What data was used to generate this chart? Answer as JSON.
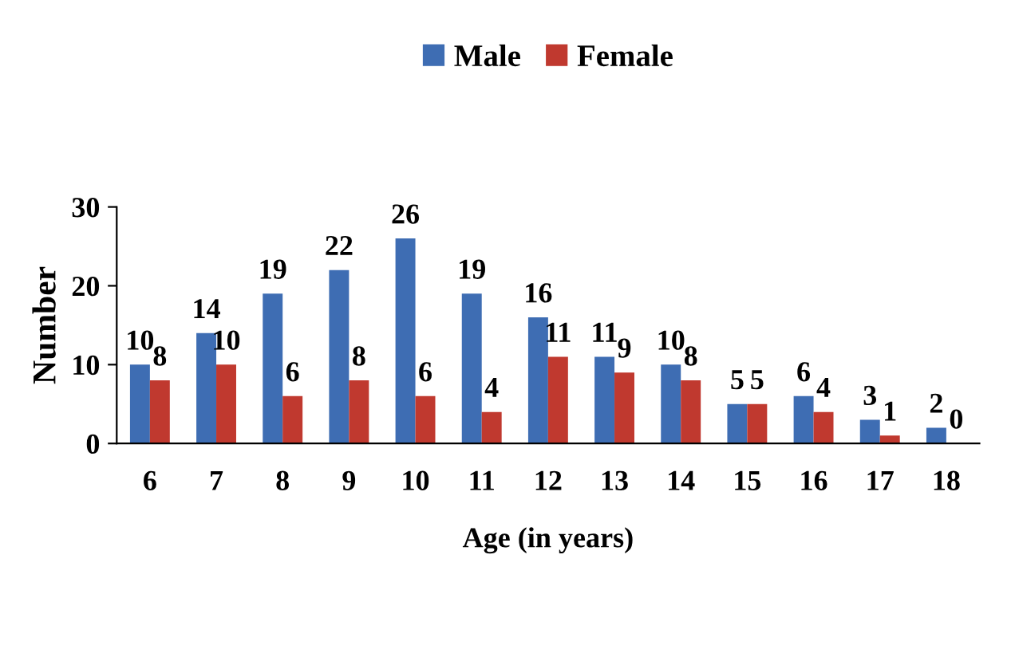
{
  "chart_data": {
    "type": "bar",
    "xlabel": "Age (in years)",
    "ylabel": "Number",
    "categories": [
      "6",
      "7",
      "8",
      "9",
      "10",
      "11",
      "12",
      "13",
      "14",
      "15",
      "16",
      "17",
      "18"
    ],
    "series": [
      {
        "name": "Male",
        "color": "#3e6db3",
        "values": [
          10,
          14,
          19,
          22,
          26,
          19,
          16,
          11,
          10,
          5,
          6,
          3,
          2
        ]
      },
      {
        "name": "Female",
        "color": "#c0392f",
        "values": [
          8,
          10,
          6,
          8,
          6,
          4,
          11,
          9,
          8,
          5,
          4,
          1,
          0
        ]
      }
    ],
    "ylim": [
      0,
      30
    ],
    "yticks": [
      0,
      10,
      20,
      30
    ],
    "data_labels": true,
    "legend": "top",
    "grid": false
  }
}
